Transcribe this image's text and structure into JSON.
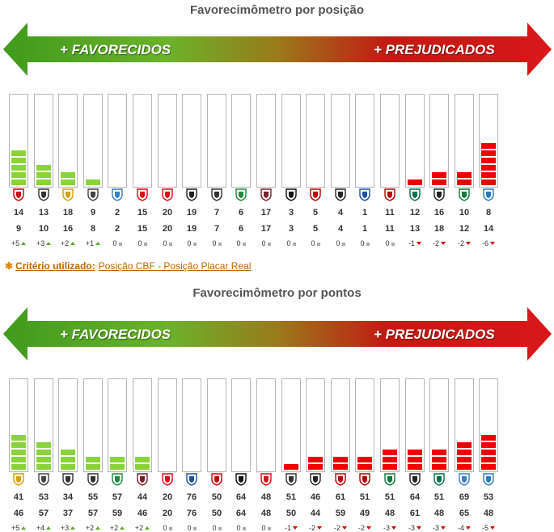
{
  "chart_data": [
    {
      "type": "bar",
      "title": "Favorecimômetro por posição",
      "arrow": {
        "left_label": "+ FAVORECIDOS",
        "right_label": "+ PREJUDICADOS"
      },
      "row1": [
        "14",
        "13",
        "18",
        "9",
        "2",
        "15",
        "20",
        "19",
        "7",
        "6",
        "17",
        "3",
        "5",
        "4",
        "1",
        "11",
        "12",
        "16",
        "10",
        "8"
      ],
      "row2": [
        "9",
        "10",
        "16",
        "8",
        "2",
        "15",
        "20",
        "19",
        "7",
        "6",
        "17",
        "3",
        "5",
        "4",
        "1",
        "11",
        "13",
        "18",
        "12",
        "14"
      ],
      "deltas": [
        {
          "text": "+5",
          "dir": "up"
        },
        {
          "text": "+3",
          "dir": "up"
        },
        {
          "text": "+2",
          "dir": "up"
        },
        {
          "text": "+1",
          "dir": "up"
        },
        {
          "text": "0",
          "dir": "zero"
        },
        {
          "text": "0",
          "dir": "zero"
        },
        {
          "text": "0",
          "dir": "zero"
        },
        {
          "text": "0",
          "dir": "zero"
        },
        {
          "text": "0",
          "dir": "zero"
        },
        {
          "text": "0",
          "dir": "zero"
        },
        {
          "text": "0",
          "dir": "zero"
        },
        {
          "text": "0",
          "dir": "zero"
        },
        {
          "text": "0",
          "dir": "zero"
        },
        {
          "text": "0",
          "dir": "zero"
        },
        {
          "text": "0",
          "dir": "zero"
        },
        {
          "text": "0",
          "dir": "zero"
        },
        {
          "text": "-1",
          "dir": "down"
        },
        {
          "text": "-2",
          "dir": "down"
        },
        {
          "text": "-2",
          "dir": "down"
        },
        {
          "text": "-6",
          "dir": "down"
        }
      ],
      "values": [
        5,
        3,
        2,
        1,
        0,
        0,
        0,
        0,
        0,
        0,
        0,
        0,
        0,
        0,
        0,
        0,
        -1,
        -2,
        -2,
        -6
      ],
      "badge_colors": [
        "#cc0000",
        "#333333",
        "#d4a000",
        "#444444",
        "#3a7fc1",
        "#e30613",
        "#e30613",
        "#222222",
        "#333333",
        "#1b8a3a",
        "#7a1f2b",
        "#111111",
        "#c00000",
        "#222222",
        "#1c4fa0",
        "#b00000",
        "#00704a",
        "#222222",
        "#0a7a3a",
        "#2a7ac0"
      ]
    },
    {
      "type": "bar",
      "title": "Favorecimômetro por pontos",
      "arrow": {
        "left_label": "+ FAVORECIDOS",
        "right_label": "+ PREJUDICADOS"
      },
      "row1": [
        "41",
        "53",
        "34",
        "55",
        "57",
        "44",
        "20",
        "76",
        "50",
        "64",
        "48",
        "51",
        "46",
        "61",
        "51",
        "51",
        "64",
        "51",
        "69",
        "53"
      ],
      "row2": [
        "46",
        "57",
        "37",
        "57",
        "59",
        "46",
        "20",
        "76",
        "50",
        "64",
        "48",
        "50",
        "44",
        "59",
        "49",
        "48",
        "61",
        "48",
        "65",
        "48"
      ],
      "deltas": [
        {
          "text": "+5",
          "dir": "up"
        },
        {
          "text": "+4",
          "dir": "up"
        },
        {
          "text": "+3",
          "dir": "up"
        },
        {
          "text": "+2",
          "dir": "up"
        },
        {
          "text": "+2",
          "dir": "up"
        },
        {
          "text": "+2",
          "dir": "up"
        },
        {
          "text": "0",
          "dir": "zero"
        },
        {
          "text": "0",
          "dir": "zero"
        },
        {
          "text": "0",
          "dir": "zero"
        },
        {
          "text": "0",
          "dir": "zero"
        },
        {
          "text": "0",
          "dir": "zero"
        },
        {
          "text": "-1",
          "dir": "down"
        },
        {
          "text": "-2",
          "dir": "down"
        },
        {
          "text": "-2",
          "dir": "down"
        },
        {
          "text": "-2",
          "dir": "down"
        },
        {
          "text": "-3",
          "dir": "down"
        },
        {
          "text": "-3",
          "dir": "down"
        },
        {
          "text": "-3",
          "dir": "down"
        },
        {
          "text": "-4",
          "dir": "down"
        },
        {
          "text": "-5",
          "dir": "down"
        }
      ],
      "values": [
        5,
        4,
        3,
        2,
        2,
        2,
        0,
        0,
        0,
        0,
        0,
        -1,
        -2,
        -2,
        -2,
        -3,
        -3,
        -3,
        -4,
        -5
      ],
      "badge_colors": [
        "#d4a000",
        "#444444",
        "#333333",
        "#333333",
        "#1b8a3a",
        "#7a1f2b",
        "#e30613",
        "#1c4fa0",
        "#cc0000",
        "#111111",
        "#e30613",
        "#333333",
        "#222222",
        "#c00000",
        "#b00000",
        "#0a7a3a",
        "#222222",
        "#00704a",
        "#3a7fc1",
        "#2a7ac0"
      ]
    }
  ],
  "criteria": {
    "label": "Critério utilizado:",
    "value": "Posição CBF - Posição Placar Real"
  }
}
